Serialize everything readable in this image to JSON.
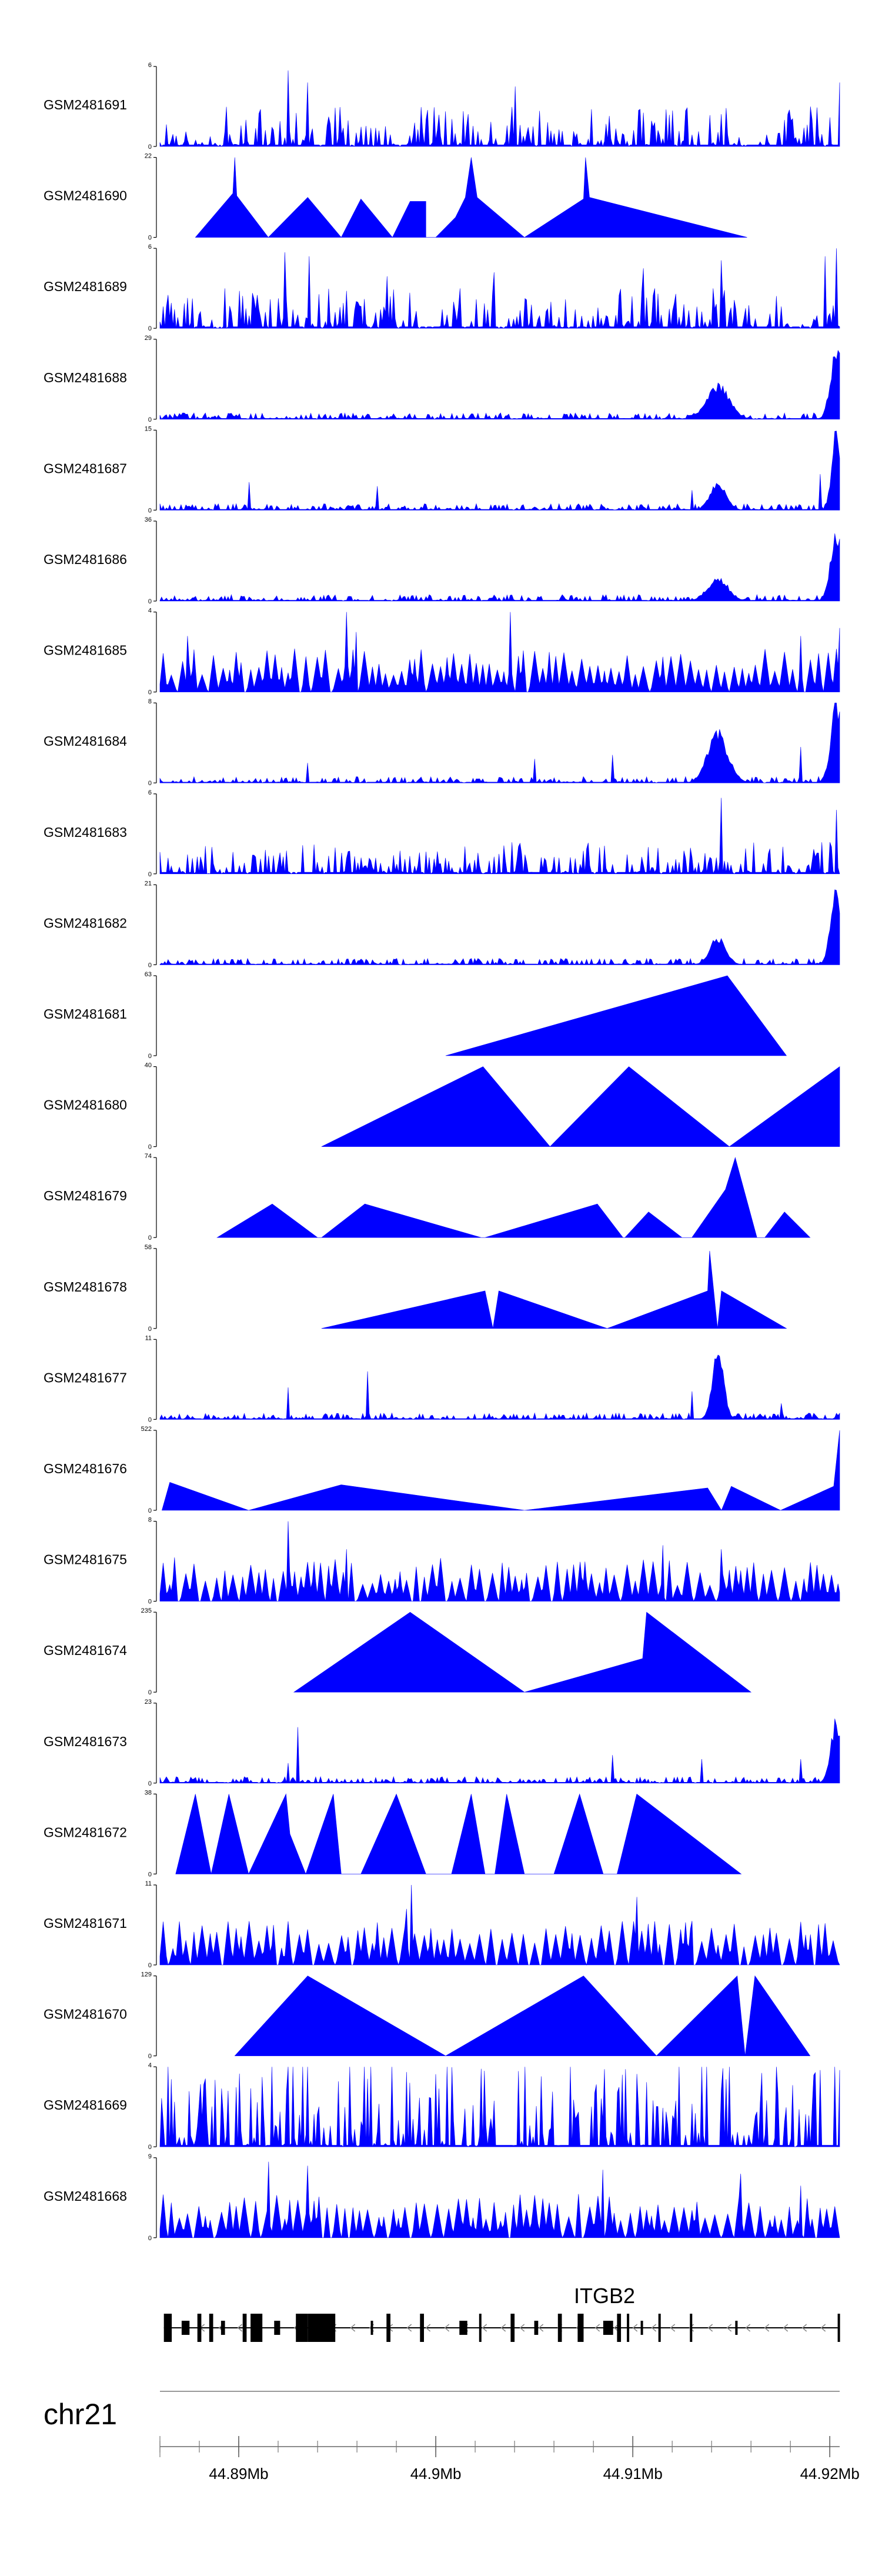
{
  "chart_data": {
    "type": "area",
    "description_free": true,
    "xrange_mb": [
      44.886,
      44.9205
    ],
    "fill_color": "#0000ff",
    "tracks": [
      {
        "name": "GSM2481691",
        "ymax": "6",
        "ymin": "0",
        "pattern": "dense",
        "seed": 11,
        "peaks": [
          [
            44.8925,
            0.95
          ],
          [
            44.8935,
            0.8
          ],
          [
            44.904,
            0.75
          ],
          [
            44.9205,
            0.8
          ]
        ]
      },
      {
        "name": "GSM2481690",
        "ymax": "22",
        "ymin": "0",
        "pattern": "triangles",
        "points": [
          [
            44.8878,
            0
          ],
          [
            44.8897,
            0.55
          ],
          [
            44.8898,
            1.0
          ],
          [
            44.8899,
            0.52
          ],
          [
            44.8915,
            0
          ],
          [
            44.8935,
            0.5
          ],
          [
            44.8952,
            0
          ],
          [
            44.8962,
            0.48
          ],
          [
            44.8978,
            0
          ],
          [
            44.8987,
            0.45
          ],
          [
            44.8995,
            0.45
          ],
          [
            44.8995,
            0
          ],
          [
            44.9,
            0
          ],
          [
            44.901,
            0.25
          ],
          [
            44.9015,
            0.5
          ],
          [
            44.9018,
            1.0
          ],
          [
            44.9021,
            0.5
          ],
          [
            44.9045,
            0
          ],
          [
            44.9075,
            0.48
          ],
          [
            44.9076,
            1.0
          ],
          [
            44.9078,
            0.5
          ],
          [
            44.9158,
            0
          ]
        ]
      },
      {
        "name": "GSM2481689",
        "ymax": "6",
        "ymin": "0",
        "pattern": "dense",
        "seed": 23,
        "peaks": [
          [
            44.8923,
            0.95
          ],
          [
            44.8936,
            0.9
          ],
          [
            44.8975,
            0.65
          ],
          [
            44.903,
            0.7
          ],
          [
            44.9105,
            0.75
          ],
          [
            44.9145,
            0.85
          ],
          [
            44.9203,
            1.0
          ],
          [
            44.9198,
            0.9
          ]
        ]
      },
      {
        "name": "GSM2481688",
        "ymax": "29",
        "ymin": "0",
        "pattern": "lowpeak",
        "seed": 37,
        "bumps": [
          [
            44.9143,
            0.45,
            0.0008
          ],
          [
            44.9203,
            0.95,
            0.0004
          ]
        ]
      },
      {
        "name": "GSM2481687",
        "ymax": "15",
        "ymin": "0",
        "pattern": "lowpeak",
        "seed": 41,
        "bumps": [
          [
            44.9143,
            0.35,
            0.0006
          ],
          [
            44.9203,
            1.0,
            0.0003
          ]
        ],
        "spikes": [
          [
            44.8905,
            0.35
          ],
          [
            44.897,
            0.3
          ],
          [
            44.913,
            0.25
          ],
          [
            44.9195,
            0.45
          ]
        ]
      },
      {
        "name": "GSM2481686",
        "ymax": "36",
        "ymin": "0",
        "pattern": "lowpeak",
        "seed": 53,
        "bumps": [
          [
            44.9143,
            0.3,
            0.0007
          ],
          [
            44.9203,
            0.9,
            0.0004
          ]
        ]
      },
      {
        "name": "GSM2481685",
        "ymax": "4",
        "ymin": "0",
        "pattern": "triband",
        "seed": 61,
        "peaks": [
          [
            44.8874,
            0.7
          ],
          [
            44.8955,
            1.0
          ],
          [
            44.896,
            0.75
          ],
          [
            44.9038,
            1.0
          ],
          [
            44.9185,
            0.7
          ],
          [
            44.9205,
            0.8
          ]
        ]
      },
      {
        "name": "GSM2481684",
        "ymax": "8",
        "ymin": "0",
        "pattern": "lowpeak",
        "seed": 71,
        "bumps": [
          [
            44.9143,
            0.65,
            0.0007
          ],
          [
            44.9203,
            1.0,
            0.0004
          ]
        ],
        "spikes": [
          [
            44.8935,
            0.25
          ],
          [
            44.905,
            0.3
          ],
          [
            44.909,
            0.35
          ],
          [
            44.9185,
            0.45
          ]
        ]
      },
      {
        "name": "GSM2481683",
        "ymax": "6",
        "ymin": "0",
        "pattern": "dense",
        "seed": 83,
        "peaks": [
          [
            44.9145,
            0.95
          ],
          [
            44.9203,
            0.8
          ]
        ],
        "scale": 0.4
      },
      {
        "name": "GSM2481682",
        "ymax": "21",
        "ymin": "0",
        "pattern": "lowpeak",
        "seed": 97,
        "bumps": [
          [
            44.9143,
            0.35,
            0.0006
          ],
          [
            44.9203,
            0.95,
            0.0004
          ]
        ]
      },
      {
        "name": "GSM2481681",
        "ymax": "63",
        "ymin": "0",
        "pattern": "triangles",
        "points": [
          [
            44.9005,
            0
          ],
          [
            44.9148,
            1.0
          ],
          [
            44.9178,
            0
          ]
        ]
      },
      {
        "name": "GSM2481680",
        "ymax": "40",
        "ymin": "0",
        "pattern": "triangles",
        "points": [
          [
            44.8942,
            0
          ],
          [
            44.9024,
            1.0
          ],
          [
            44.9058,
            0
          ],
          [
            44.9098,
            1.0
          ],
          [
            44.9149,
            0
          ],
          [
            44.9205,
            1.0
          ],
          [
            44.9205,
            0
          ]
        ]
      },
      {
        "name": "GSM2481679",
        "ymax": "74",
        "ymin": "0",
        "pattern": "triangles",
        "points": [
          [
            44.8889,
            0
          ],
          [
            44.8917,
            0.42
          ],
          [
            44.894,
            0
          ],
          [
            44.8942,
            0
          ],
          [
            44.8964,
            0.42
          ],
          [
            44.9023,
            0
          ],
          [
            44.9025,
            0
          ],
          [
            44.9082,
            0.42
          ],
          [
            44.9095,
            0
          ],
          [
            44.9096,
            0
          ],
          [
            44.9108,
            0.32
          ],
          [
            44.9125,
            0
          ],
          [
            44.913,
            0
          ],
          [
            44.9147,
            0.6
          ],
          [
            44.9152,
            1.0
          ],
          [
            44.9163,
            0
          ],
          [
            44.9167,
            0
          ],
          [
            44.9177,
            0.32
          ],
          [
            44.919,
            0
          ]
        ]
      },
      {
        "name": "GSM2481678",
        "ymax": "58",
        "ymin": "0",
        "pattern": "triangles",
        "points": [
          [
            44.8942,
            0
          ],
          [
            44.9025,
            0.47
          ],
          [
            44.9029,
            0
          ],
          [
            44.9032,
            0.47
          ],
          [
            44.9087,
            0
          ],
          [
            44.9138,
            0.47
          ],
          [
            44.9139,
            0.97
          ],
          [
            44.9143,
            0
          ],
          [
            44.9145,
            0.47
          ],
          [
            44.9178,
            0
          ]
        ]
      },
      {
        "name": "GSM2481677",
        "ymax": "11",
        "ymin": "0",
        "pattern": "lowpeak",
        "seed": 109,
        "bumps": [
          [
            44.9143,
            0.85,
            0.0004
          ]
        ],
        "spikes": [
          [
            44.8925,
            0.4
          ],
          [
            44.8965,
            0.6
          ],
          [
            44.913,
            0.35
          ],
          [
            44.9175,
            0.2
          ]
        ]
      },
      {
        "name": "GSM2481676",
        "ymax": "522",
        "ymin": "0",
        "pattern": "triangles",
        "points": [
          [
            44.8861,
            0
          ],
          [
            44.8865,
            0.35
          ],
          [
            44.8905,
            0
          ],
          [
            44.8952,
            0.32
          ],
          [
            44.9045,
            0
          ],
          [
            44.9138,
            0.28
          ],
          [
            44.9145,
            0
          ],
          [
            44.915,
            0.3
          ],
          [
            44.9175,
            0
          ],
          [
            44.9202,
            0.3
          ],
          [
            44.9205,
            1.0
          ],
          [
            44.9205,
            0
          ]
        ]
      },
      {
        "name": "GSM2481675",
        "ymax": "8",
        "ymin": "0",
        "pattern": "triband",
        "seed": 127,
        "peaks": [
          [
            44.8925,
            1.0
          ],
          [
            44.8955,
            0.65
          ],
          [
            44.9115,
            0.7
          ],
          [
            44.9145,
            0.65
          ]
        ]
      },
      {
        "name": "GSM2481674",
        "ymax": "235",
        "ymin": "0",
        "pattern": "triangles",
        "points": [
          [
            44.8928,
            0
          ],
          [
            44.8987,
            1.0
          ],
          [
            44.9045,
            0
          ],
          [
            44.9105,
            0.42
          ],
          [
            44.9107,
            1.0
          ],
          [
            44.916,
            0
          ]
        ]
      },
      {
        "name": "GSM2481673",
        "ymax": "23",
        "ymin": "0",
        "pattern": "lowpeak",
        "seed": 139,
        "bumps": [
          [
            44.9203,
            0.8,
            0.0004
          ]
        ],
        "spikes": [
          [
            44.893,
            0.7
          ],
          [
            44.8925,
            0.25
          ],
          [
            44.909,
            0.35
          ],
          [
            44.9135,
            0.3
          ],
          [
            44.9185,
            0.3
          ]
        ]
      },
      {
        "name": "GSM2481672",
        "ymax": "38",
        "ymin": "0",
        "pattern": "triangles",
        "points": [
          [
            44.8868,
            0
          ],
          [
            44.8878,
            1.0
          ],
          [
            44.8886,
            0
          ],
          [
            44.8895,
            1.0
          ],
          [
            44.8905,
            0
          ],
          [
            44.8924,
            1.0
          ],
          [
            44.8926,
            0.5
          ],
          [
            44.8934,
            0
          ],
          [
            44.8948,
            1.0
          ],
          [
            44.8952,
            0
          ],
          [
            44.8962,
            0
          ],
          [
            44.898,
            1.0
          ],
          [
            44.8995,
            0
          ],
          [
            44.9008,
            0
          ],
          [
            44.9018,
            1.0
          ],
          [
            44.9025,
            0
          ],
          [
            44.903,
            0
          ],
          [
            44.9036,
            1.0
          ],
          [
            44.9045,
            0
          ],
          [
            44.906,
            0
          ],
          [
            44.9073,
            1.0
          ],
          [
            44.9085,
            0
          ],
          [
            44.9092,
            0
          ],
          [
            44.9102,
            1.0
          ],
          [
            44.9155,
            0
          ]
        ]
      },
      {
        "name": "GSM2481671",
        "ymax": "11",
        "ymin": "0",
        "pattern": "triband",
        "seed": 151,
        "peaks": [
          [
            44.8988,
            1.0
          ],
          [
            44.8985,
            0.7
          ],
          [
            44.9102,
            0.85
          ],
          [
            44.913,
            0.55
          ]
        ]
      },
      {
        "name": "GSM2481670",
        "ymax": "129",
        "ymin": "0",
        "pattern": "triangles",
        "points": [
          [
            44.8898,
            0
          ],
          [
            44.8935,
            1.0
          ],
          [
            44.9005,
            0
          ],
          [
            44.9075,
            1.0
          ],
          [
            44.9112,
            0
          ],
          [
            44.9153,
            1.0
          ],
          [
            44.9157,
            0
          ],
          [
            44.9162,
            1.0
          ],
          [
            44.919,
            0
          ]
        ]
      },
      {
        "name": "GSM2481669",
        "ymax": "4",
        "ymin": "0",
        "pattern": "dense",
        "seed": 163,
        "peaks": [
          [
            44.8935,
            1.0
          ],
          [
            44.8965,
            0.85
          ],
          [
            44.9025,
            0.95
          ],
          [
            44.9095,
            0.9
          ],
          [
            44.9135,
            0.9
          ]
        ],
        "scale": 1.15
      },
      {
        "name": "GSM2481668",
        "ymax": "9",
        "ymin": "0",
        "pattern": "triband",
        "seed": 173,
        "peaks": [
          [
            44.8915,
            0.95
          ],
          [
            44.8935,
            0.9
          ],
          [
            44.9085,
            0.85
          ],
          [
            44.9155,
            0.8
          ],
          [
            44.9185,
            0.65
          ]
        ]
      }
    ],
    "gene": {
      "name": "ITGB2",
      "start_mb": 44.8862,
      "end_mb": 44.9204,
      "strand": "-",
      "exons": [
        [
          44.8862,
          44.8866
        ],
        [
          44.8871,
          44.8875
        ],
        [
          44.8879,
          44.8881
        ],
        [
          44.8885,
          44.8887
        ],
        [
          44.8891,
          44.8893
        ],
        [
          44.8902,
          44.8904
        ],
        [
          44.8906,
          44.8912
        ],
        [
          44.8918,
          44.8921
        ],
        [
          44.8929,
          44.8935
        ],
        [
          44.8935,
          44.8949
        ],
        [
          44.8967,
          44.8968
        ],
        [
          44.8975,
          44.8977
        ],
        [
          44.8992,
          44.8994
        ],
        [
          44.9012,
          44.9016
        ],
        [
          44.9022,
          44.9023
        ],
        [
          44.9038,
          44.904
        ],
        [
          44.905,
          44.9052
        ],
        [
          44.9062,
          44.9064
        ],
        [
          44.9072,
          44.9075
        ],
        [
          44.9085,
          44.909
        ],
        [
          44.9092,
          44.9094
        ],
        [
          44.9097,
          44.9098
        ],
        [
          44.9104,
          44.9105
        ],
        [
          44.9113,
          44.9114
        ],
        [
          44.9129,
          44.913
        ],
        [
          44.9152,
          44.9153
        ],
        [
          44.9204,
          44.9205
        ]
      ]
    },
    "chromosome": "chr21",
    "xticks": [
      {
        "value": 44.89,
        "label": "44.89Mb"
      },
      {
        "value": 44.9,
        "label": "44.9Mb"
      },
      {
        "value": 44.91,
        "label": "44.91Mb"
      },
      {
        "value": 44.92,
        "label": "44.92Mb"
      }
    ]
  }
}
